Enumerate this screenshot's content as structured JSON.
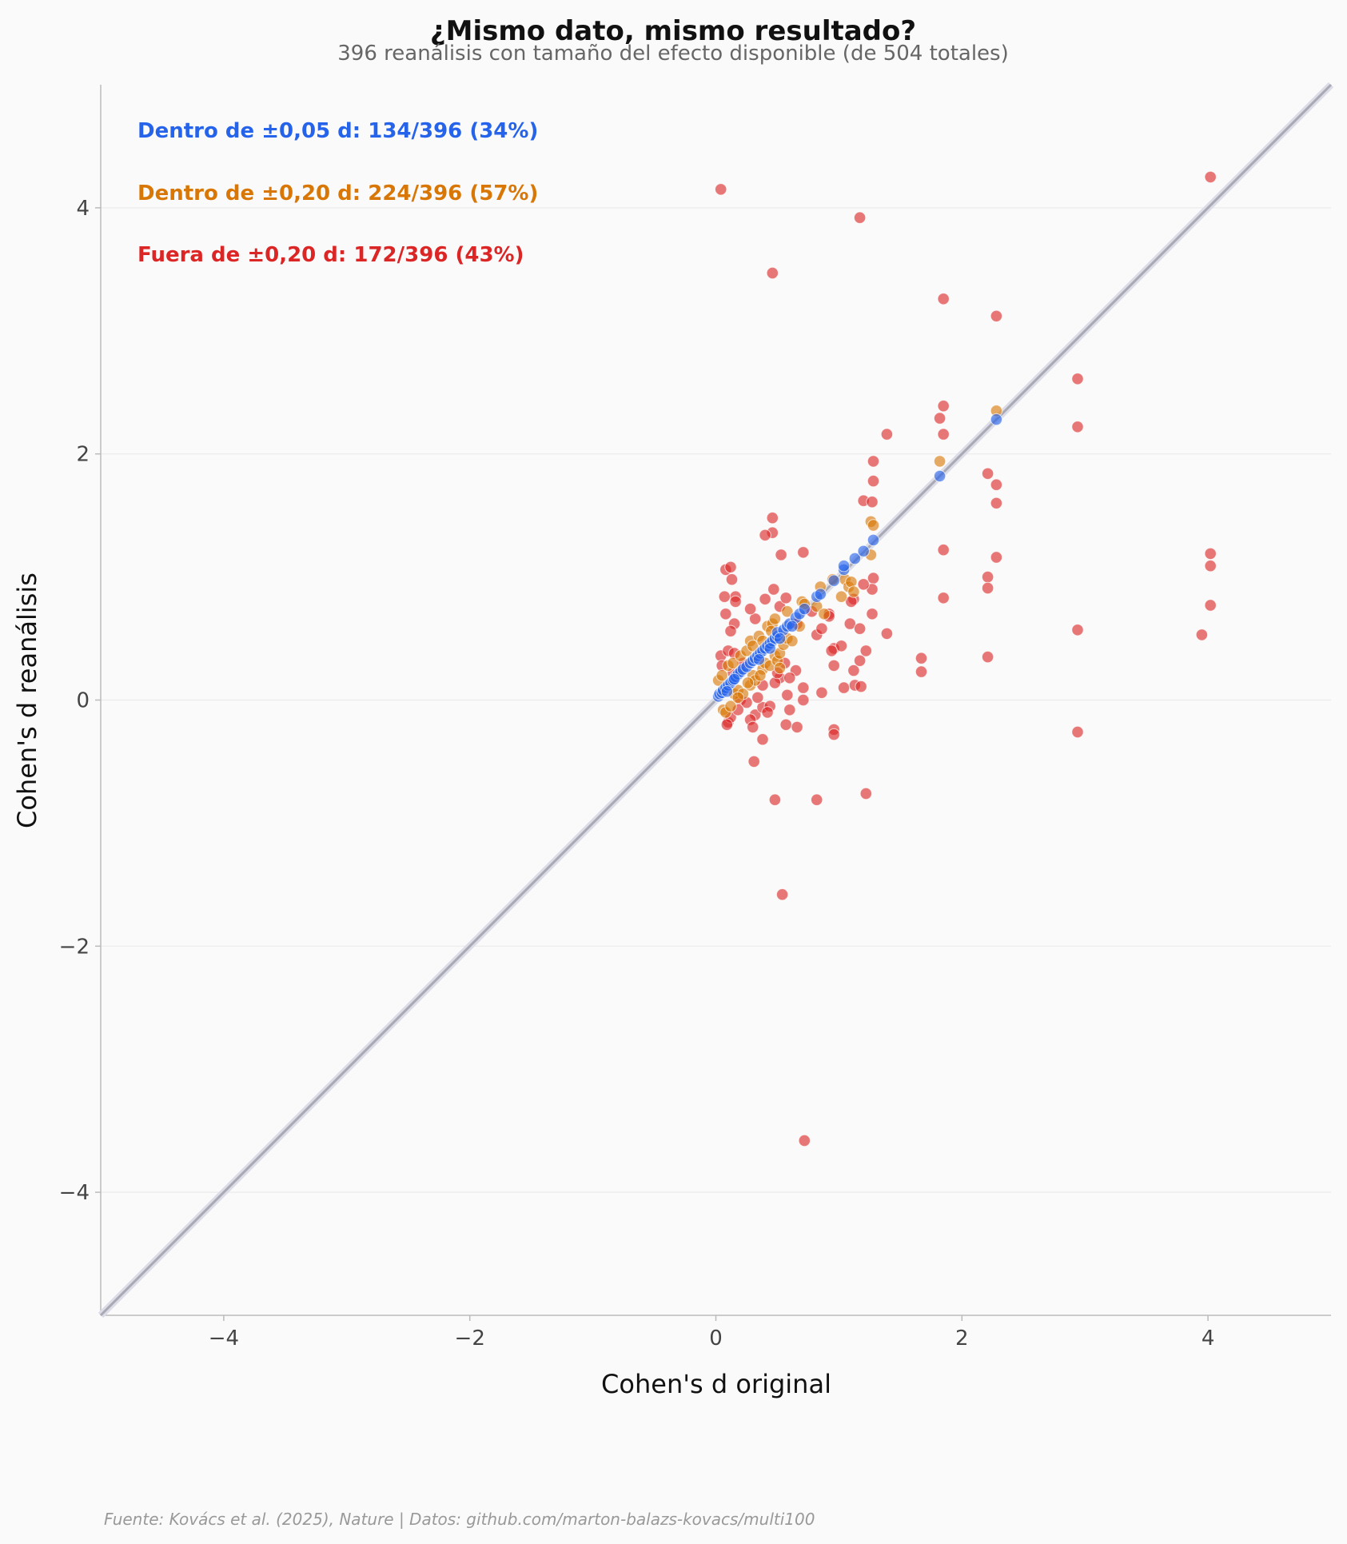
{
  "chart_data": {
    "type": "scatter",
    "title": "¿Mismo dato, mismo resultado?",
    "subtitle": "396 reanálisis con tamaño del efecto disponible (de 504 totales)",
    "xlabel": "Cohen's d original",
    "ylabel": "Cohen's d reanálisis",
    "xlim": [
      -5,
      5
    ],
    "ylim": [
      -5,
      5
    ],
    "xticks": [
      -4,
      -2,
      0,
      2,
      4
    ],
    "yticks": [
      -4,
      -2,
      0,
      2,
      4
    ],
    "xtick_labels": [
      "−4",
      "−2",
      "0",
      "2",
      "4"
    ],
    "ytick_labels": [
      "−4",
      "−2",
      "0",
      "2",
      "4"
    ],
    "grid": "horizontal",
    "reference_line": "y = x",
    "annotations": [
      {
        "text": "Dentro de ±0,05 d: 134/396 (34%)",
        "color": "#2563eb"
      },
      {
        "text": "Dentro de ±0,20 d: 224/396 (57%)",
        "color": "#d97706"
      },
      {
        "text": "Fuera de ±0,20 d: 172/396 (43%)",
        "color": "#dc2626"
      }
    ],
    "source": "Fuente: Kovács et al. (2025), Nature | Datos: github.com/marton-balazs-kovacs/multi100",
    "series": [
      {
        "name": "Dentro de ±0,05 d",
        "color": "#2563eb",
        "points": [
          [
            0.02,
            0.03
          ],
          [
            0.03,
            0.05
          ],
          [
            0.05,
            0.06
          ],
          [
            0.06,
            0.08
          ],
          [
            0.08,
            0.1
          ],
          [
            0.1,
            0.12
          ],
          [
            0.12,
            0.14
          ],
          [
            0.14,
            0.16
          ],
          [
            0.16,
            0.19
          ],
          [
            0.18,
            0.21
          ],
          [
            0.2,
            0.23
          ],
          [
            0.22,
            0.25
          ],
          [
            0.25,
            0.27
          ],
          [
            0.28,
            0.3
          ],
          [
            0.3,
            0.32
          ],
          [
            0.32,
            0.34
          ],
          [
            0.34,
            0.36
          ],
          [
            0.36,
            0.38
          ],
          [
            0.38,
            0.4
          ],
          [
            0.4,
            0.42
          ],
          [
            0.42,
            0.44
          ],
          [
            0.44,
            0.46
          ],
          [
            0.46,
            0.48
          ],
          [
            0.48,
            0.5
          ],
          [
            0.5,
            0.52
          ],
          [
            0.5,
            0.55
          ],
          [
            0.55,
            0.57
          ],
          [
            0.58,
            0.6
          ],
          [
            0.6,
            0.62
          ],
          [
            0.65,
            0.67
          ],
          [
            0.68,
            0.7
          ],
          [
            0.72,
            0.74
          ],
          [
            0.82,
            0.84
          ],
          [
            0.85,
            0.86
          ],
          [
            0.96,
            0.97
          ],
          [
            1.04,
            1.06
          ],
          [
            1.04,
            1.09
          ],
          [
            1.13,
            1.15
          ],
          [
            1.2,
            1.21
          ],
          [
            1.28,
            1.3
          ],
          [
            1.82,
            1.82
          ],
          [
            2.28,
            2.28
          ],
          [
            0.09,
            0.07
          ],
          [
            0.15,
            0.17
          ],
          [
            0.35,
            0.33
          ],
          [
            0.44,
            0.42
          ],
          [
            0.52,
            0.5
          ],
          [
            0.62,
            0.6
          ]
        ]
      },
      {
        "name": "Dentro de ±0,20 d",
        "color": "#d97706",
        "points": [
          [
            0.02,
            0.16
          ],
          [
            0.05,
            0.2
          ],
          [
            0.06,
            -0.08
          ],
          [
            0.08,
            -0.1
          ],
          [
            0.1,
            0.28
          ],
          [
            0.12,
            -0.05
          ],
          [
            0.14,
            0.3
          ],
          [
            0.15,
            0.05
          ],
          [
            0.18,
            0.08
          ],
          [
            0.2,
            0.36
          ],
          [
            0.22,
            0.05
          ],
          [
            0.25,
            0.4
          ],
          [
            0.28,
            0.12
          ],
          [
            0.28,
            0.48
          ],
          [
            0.3,
            0.2
          ],
          [
            0.3,
            0.44
          ],
          [
            0.32,
            0.16
          ],
          [
            0.35,
            0.52
          ],
          [
            0.38,
            0.25
          ],
          [
            0.38,
            0.48
          ],
          [
            0.4,
            0.3
          ],
          [
            0.42,
            0.6
          ],
          [
            0.44,
            0.28
          ],
          [
            0.46,
            0.62
          ],
          [
            0.48,
            0.36
          ],
          [
            0.48,
            0.66
          ],
          [
            0.5,
            0.32
          ],
          [
            0.52,
            0.38
          ],
          [
            0.55,
            0.45
          ],
          [
            0.58,
            0.5
          ],
          [
            0.58,
            0.72
          ],
          [
            0.62,
            0.48
          ],
          [
            0.68,
            0.6
          ],
          [
            0.7,
            0.8
          ],
          [
            0.72,
            0.78
          ],
          [
            0.82,
            0.76
          ],
          [
            0.85,
            0.92
          ],
          [
            0.88,
            0.7
          ],
          [
            0.95,
            0.98
          ],
          [
            1.02,
            0.84
          ],
          [
            1.05,
            0.98
          ],
          [
            1.08,
            0.92
          ],
          [
            1.1,
            0.96
          ],
          [
            1.12,
            0.88
          ],
          [
            1.26,
            1.18
          ],
          [
            1.26,
            1.45
          ],
          [
            1.28,
            1.42
          ],
          [
            1.82,
            1.94
          ],
          [
            2.28,
            2.35
          ],
          [
            0.18,
            0.02
          ],
          [
            0.26,
            0.14
          ],
          [
            0.36,
            0.2
          ],
          [
            0.45,
            0.56
          ],
          [
            0.52,
            0.26
          ]
        ]
      },
      {
        "name": "Fuera de ±0,20 d",
        "color": "#dc2626",
        "points": [
          [
            0.04,
            4.15
          ],
          [
            1.17,
            3.92
          ],
          [
            0.46,
            3.47
          ],
          [
            4.02,
            4.25
          ],
          [
            1.85,
            3.26
          ],
          [
            2.28,
            3.12
          ],
          [
            2.94,
            2.61
          ],
          [
            1.85,
            2.39
          ],
          [
            1.82,
            2.29
          ],
          [
            1.85,
            2.16
          ],
          [
            1.39,
            2.16
          ],
          [
            2.94,
            2.22
          ],
          [
            1.28,
            1.94
          ],
          [
            1.28,
            1.78
          ],
          [
            2.21,
            1.84
          ],
          [
            2.28,
            1.75
          ],
          [
            2.28,
            1.6
          ],
          [
            1.2,
            1.62
          ],
          [
            1.27,
            1.61
          ],
          [
            0.46,
            1.48
          ],
          [
            0.46,
            1.36
          ],
          [
            0.4,
            1.34
          ],
          [
            0.71,
            1.2
          ],
          [
            0.53,
            1.18
          ],
          [
            1.85,
            1.22
          ],
          [
            2.28,
            1.16
          ],
          [
            4.02,
            1.19
          ],
          [
            4.02,
            1.09
          ],
          [
            0.08,
            1.06
          ],
          [
            0.12,
            1.08
          ],
          [
            0.13,
            0.98
          ],
          [
            0.16,
            0.84
          ],
          [
            0.16,
            0.8
          ],
          [
            0.07,
            0.84
          ],
          [
            0.4,
            0.82
          ],
          [
            0.47,
            0.9
          ],
          [
            0.52,
            0.76
          ],
          [
            0.57,
            0.83
          ],
          [
            1.28,
            0.99
          ],
          [
            1.27,
            0.9
          ],
          [
            1.2,
            0.94
          ],
          [
            1.12,
            0.82
          ],
          [
            1.85,
            0.83
          ],
          [
            2.21,
            1.0
          ],
          [
            2.21,
            0.91
          ],
          [
            4.02,
            0.77
          ],
          [
            0.08,
            0.7
          ],
          [
            0.15,
            0.62
          ],
          [
            0.12,
            0.56
          ],
          [
            0.32,
            0.66
          ],
          [
            0.28,
            0.74
          ],
          [
            0.66,
            0.62
          ],
          [
            0.92,
            0.7
          ],
          [
            1.09,
            0.62
          ],
          [
            1.17,
            0.58
          ],
          [
            1.27,
            0.7
          ],
          [
            1.39,
            0.54
          ],
          [
            0.82,
            0.53
          ],
          [
            2.94,
            0.57
          ],
          [
            3.95,
            0.53
          ],
          [
            0.04,
            0.36
          ],
          [
            0.1,
            0.4
          ],
          [
            0.15,
            0.38
          ],
          [
            0.22,
            0.3
          ],
          [
            0.38,
            0.12
          ],
          [
            0.52,
            0.18
          ],
          [
            0.56,
            0.3
          ],
          [
            0.65,
            0.24
          ],
          [
            0.71,
            0.1
          ],
          [
            0.96,
            0.42
          ],
          [
            0.96,
            0.28
          ],
          [
            1.02,
            0.44
          ],
          [
            1.12,
            0.24
          ],
          [
            1.17,
            0.32
          ],
          [
            1.22,
            0.4
          ],
          [
            1.67,
            0.34
          ],
          [
            1.67,
            0.23
          ],
          [
            2.21,
            0.35
          ],
          [
            0.05,
            0.28
          ],
          [
            0.2,
            0.0
          ],
          [
            0.25,
            -0.02
          ],
          [
            0.32,
            -0.12
          ],
          [
            0.38,
            -0.06
          ],
          [
            0.44,
            -0.05
          ],
          [
            0.48,
            0.14
          ],
          [
            0.58,
            0.04
          ],
          [
            0.71,
            0.0
          ],
          [
            0.86,
            0.06
          ],
          [
            1.04,
            0.1
          ],
          [
            1.13,
            0.12
          ],
          [
            1.18,
            0.11
          ],
          [
            0.1,
            -0.18
          ],
          [
            0.12,
            -0.14
          ],
          [
            0.18,
            -0.08
          ],
          [
            0.28,
            -0.16
          ],
          [
            0.3,
            -0.22
          ],
          [
            0.38,
            -0.32
          ],
          [
            0.57,
            -0.2
          ],
          [
            0.6,
            -0.08
          ],
          [
            0.66,
            -0.22
          ],
          [
            0.96,
            -0.24
          ],
          [
            0.96,
            -0.28
          ],
          [
            2.94,
            -0.26
          ],
          [
            0.31,
            -0.5
          ],
          [
            0.48,
            -0.81
          ],
          [
            0.82,
            -0.81
          ],
          [
            1.22,
            -0.76
          ],
          [
            0.54,
            -1.58
          ],
          [
            0.72,
            -3.58
          ],
          [
            0.09,
            -0.2
          ],
          [
            0.14,
            0.22
          ],
          [
            0.34,
            0.02
          ],
          [
            0.42,
            -0.1
          ],
          [
            0.5,
            0.22
          ],
          [
            0.6,
            0.18
          ],
          [
            0.94,
            0.4
          ],
          [
            1.1,
            0.8
          ],
          [
            0.86,
            0.58
          ],
          [
            0.92,
            0.68
          ],
          [
            0.78,
            0.72
          ]
        ]
      }
    ]
  }
}
